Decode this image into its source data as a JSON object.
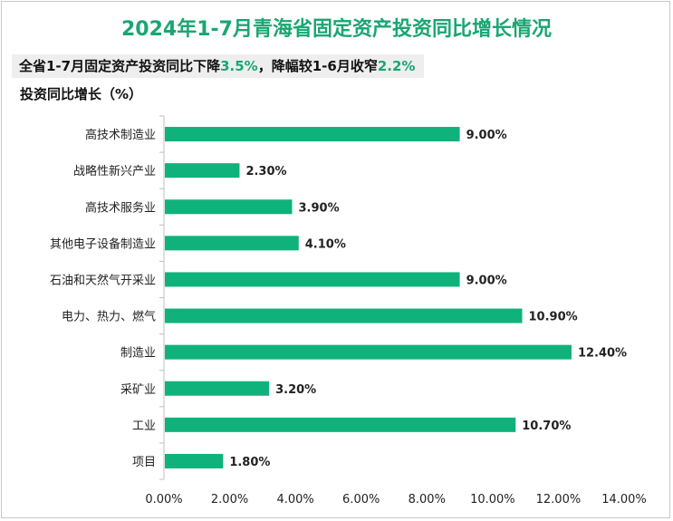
{
  "chart_data": {
    "type": "bar",
    "orientation": "horizontal",
    "title": "2024年1-7月青海省固定资产投资同比增长情况",
    "subtitle_parts": [
      "全省1-7月固定资产投资同比下降",
      "3.5%",
      "，降幅较1-6月收窄",
      "2.2%"
    ],
    "ylabel": "投资同比增长（%）",
    "categories": [
      "高技术制造业",
      "战略性新兴产业",
      "高技术服务业",
      "其他电子设备制造业",
      "石油和天然气开采业",
      "电力、热力、燃气",
      "制造业",
      "采矿业",
      "工业",
      "项目"
    ],
    "values": [
      9.0,
      2.3,
      3.9,
      4.1,
      9.0,
      10.9,
      12.4,
      3.2,
      10.7,
      1.8
    ],
    "value_labels": [
      "9.00%",
      "2.30%",
      "3.90%",
      "4.10%",
      "9.00%",
      "10.90%",
      "12.40%",
      "3.20%",
      "10.70%",
      "1.80%"
    ],
    "xlim": [
      0,
      14
    ],
    "xticks": [
      0,
      2,
      4,
      6,
      8,
      10,
      12,
      14
    ],
    "xtick_labels": [
      "0.00%",
      "2.00%",
      "4.00%",
      "6.00%",
      "8.00%",
      "10.00%",
      "12.00%",
      "14.00%"
    ],
    "bar_color": "#0fb27b",
    "grid": false
  },
  "colors": {
    "title": "#1aa672",
    "highlight": "#1aa672"
  }
}
